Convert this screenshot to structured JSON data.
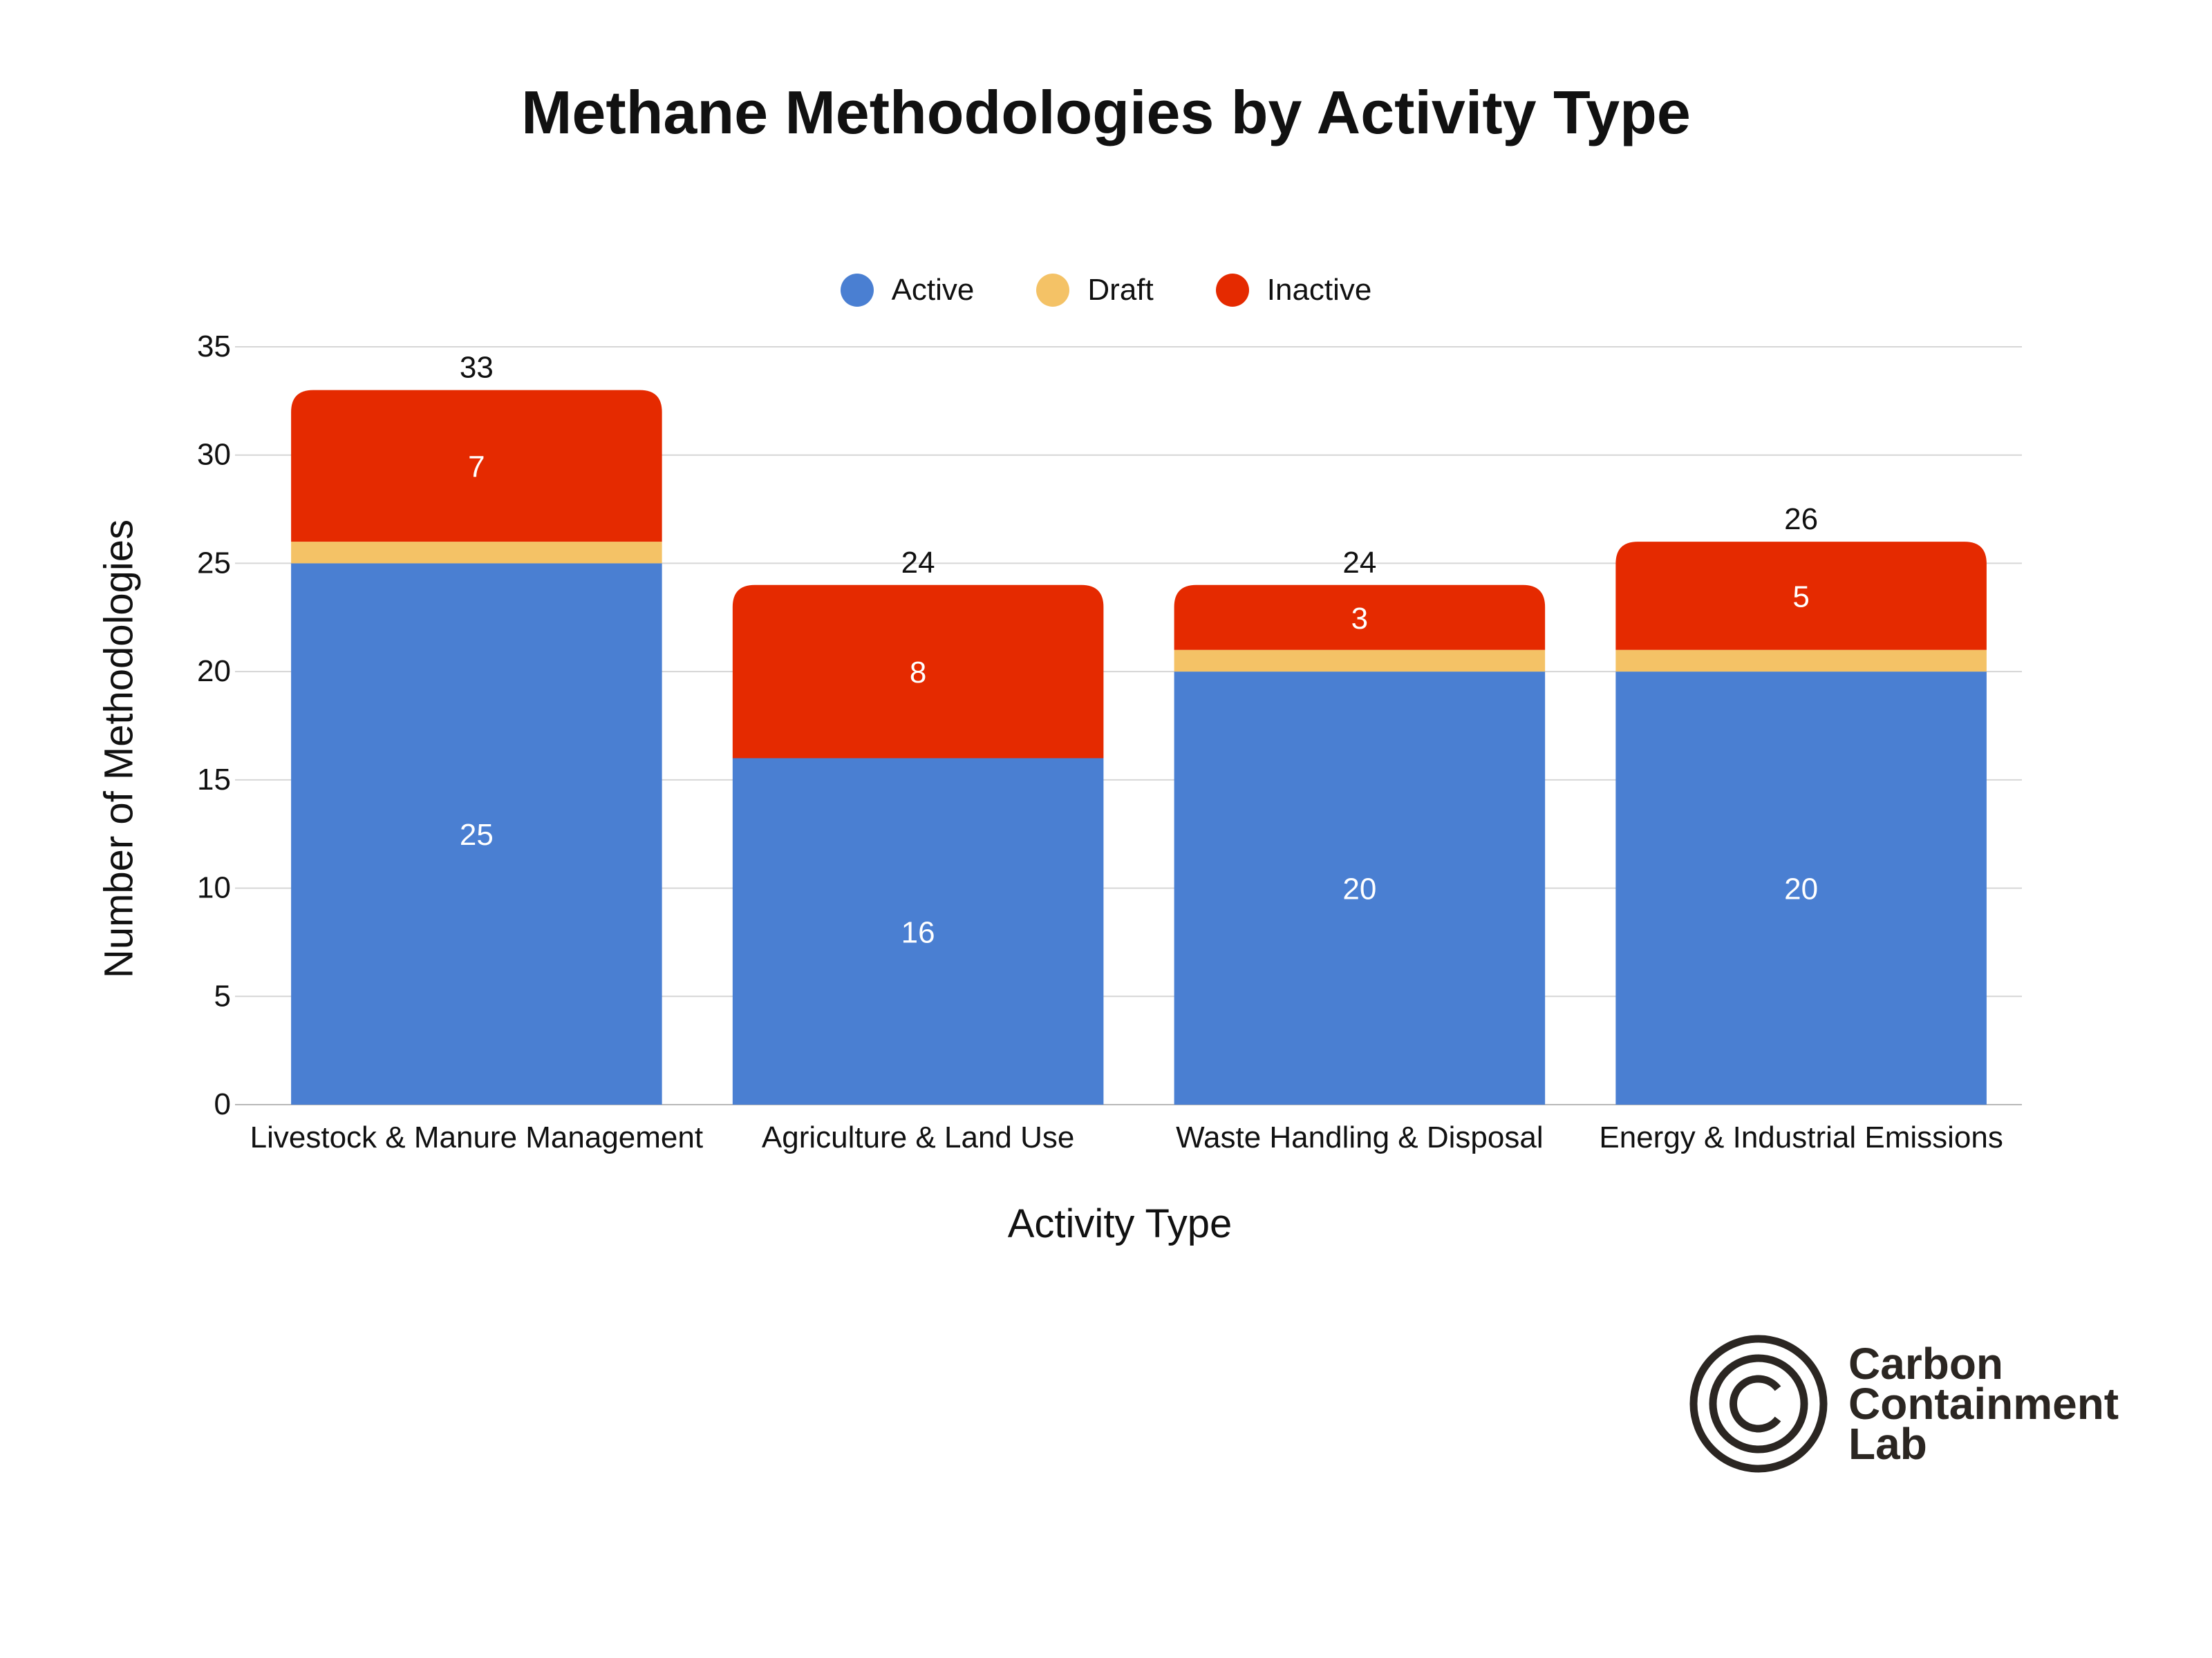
{
  "chart_data": {
    "type": "bar",
    "stacked": true,
    "title": "Methane Methodologies by Activity Type",
    "xlabel": "Activity Type",
    "ylabel": "Number of Methodologies",
    "ylim": [
      0,
      35
    ],
    "yticks": [
      0,
      5,
      10,
      15,
      20,
      25,
      30,
      35
    ],
    "grid": true,
    "legend_position": "top",
    "categories": [
      "Livestock & Manure Management",
      "Agriculture & Land Use",
      "Waste Handling & Disposal",
      "Energy & Industrial Emissions"
    ],
    "series": [
      {
        "name": "Active",
        "color": "#4a7fd2",
        "values": [
          25,
          16,
          20,
          20
        ],
        "labels": [
          "25",
          "16",
          "20",
          "20"
        ]
      },
      {
        "name": "Draft",
        "color": "#f4c266",
        "values": [
          1,
          0,
          1,
          1
        ],
        "labels": [
          "",
          "",
          "",
          ""
        ]
      },
      {
        "name": "Inactive",
        "color": "#e52a00",
        "values": [
          7,
          8,
          3,
          5
        ],
        "labels": [
          "7",
          "8",
          "3",
          "5"
        ]
      }
    ],
    "totals": [
      33,
      24,
      24,
      26
    ],
    "total_labels": [
      "33",
      "24",
      "24",
      "26"
    ]
  },
  "logo": {
    "text_lines": [
      "Carbon",
      "Containment",
      "Lab"
    ],
    "color": "#2b2622"
  }
}
